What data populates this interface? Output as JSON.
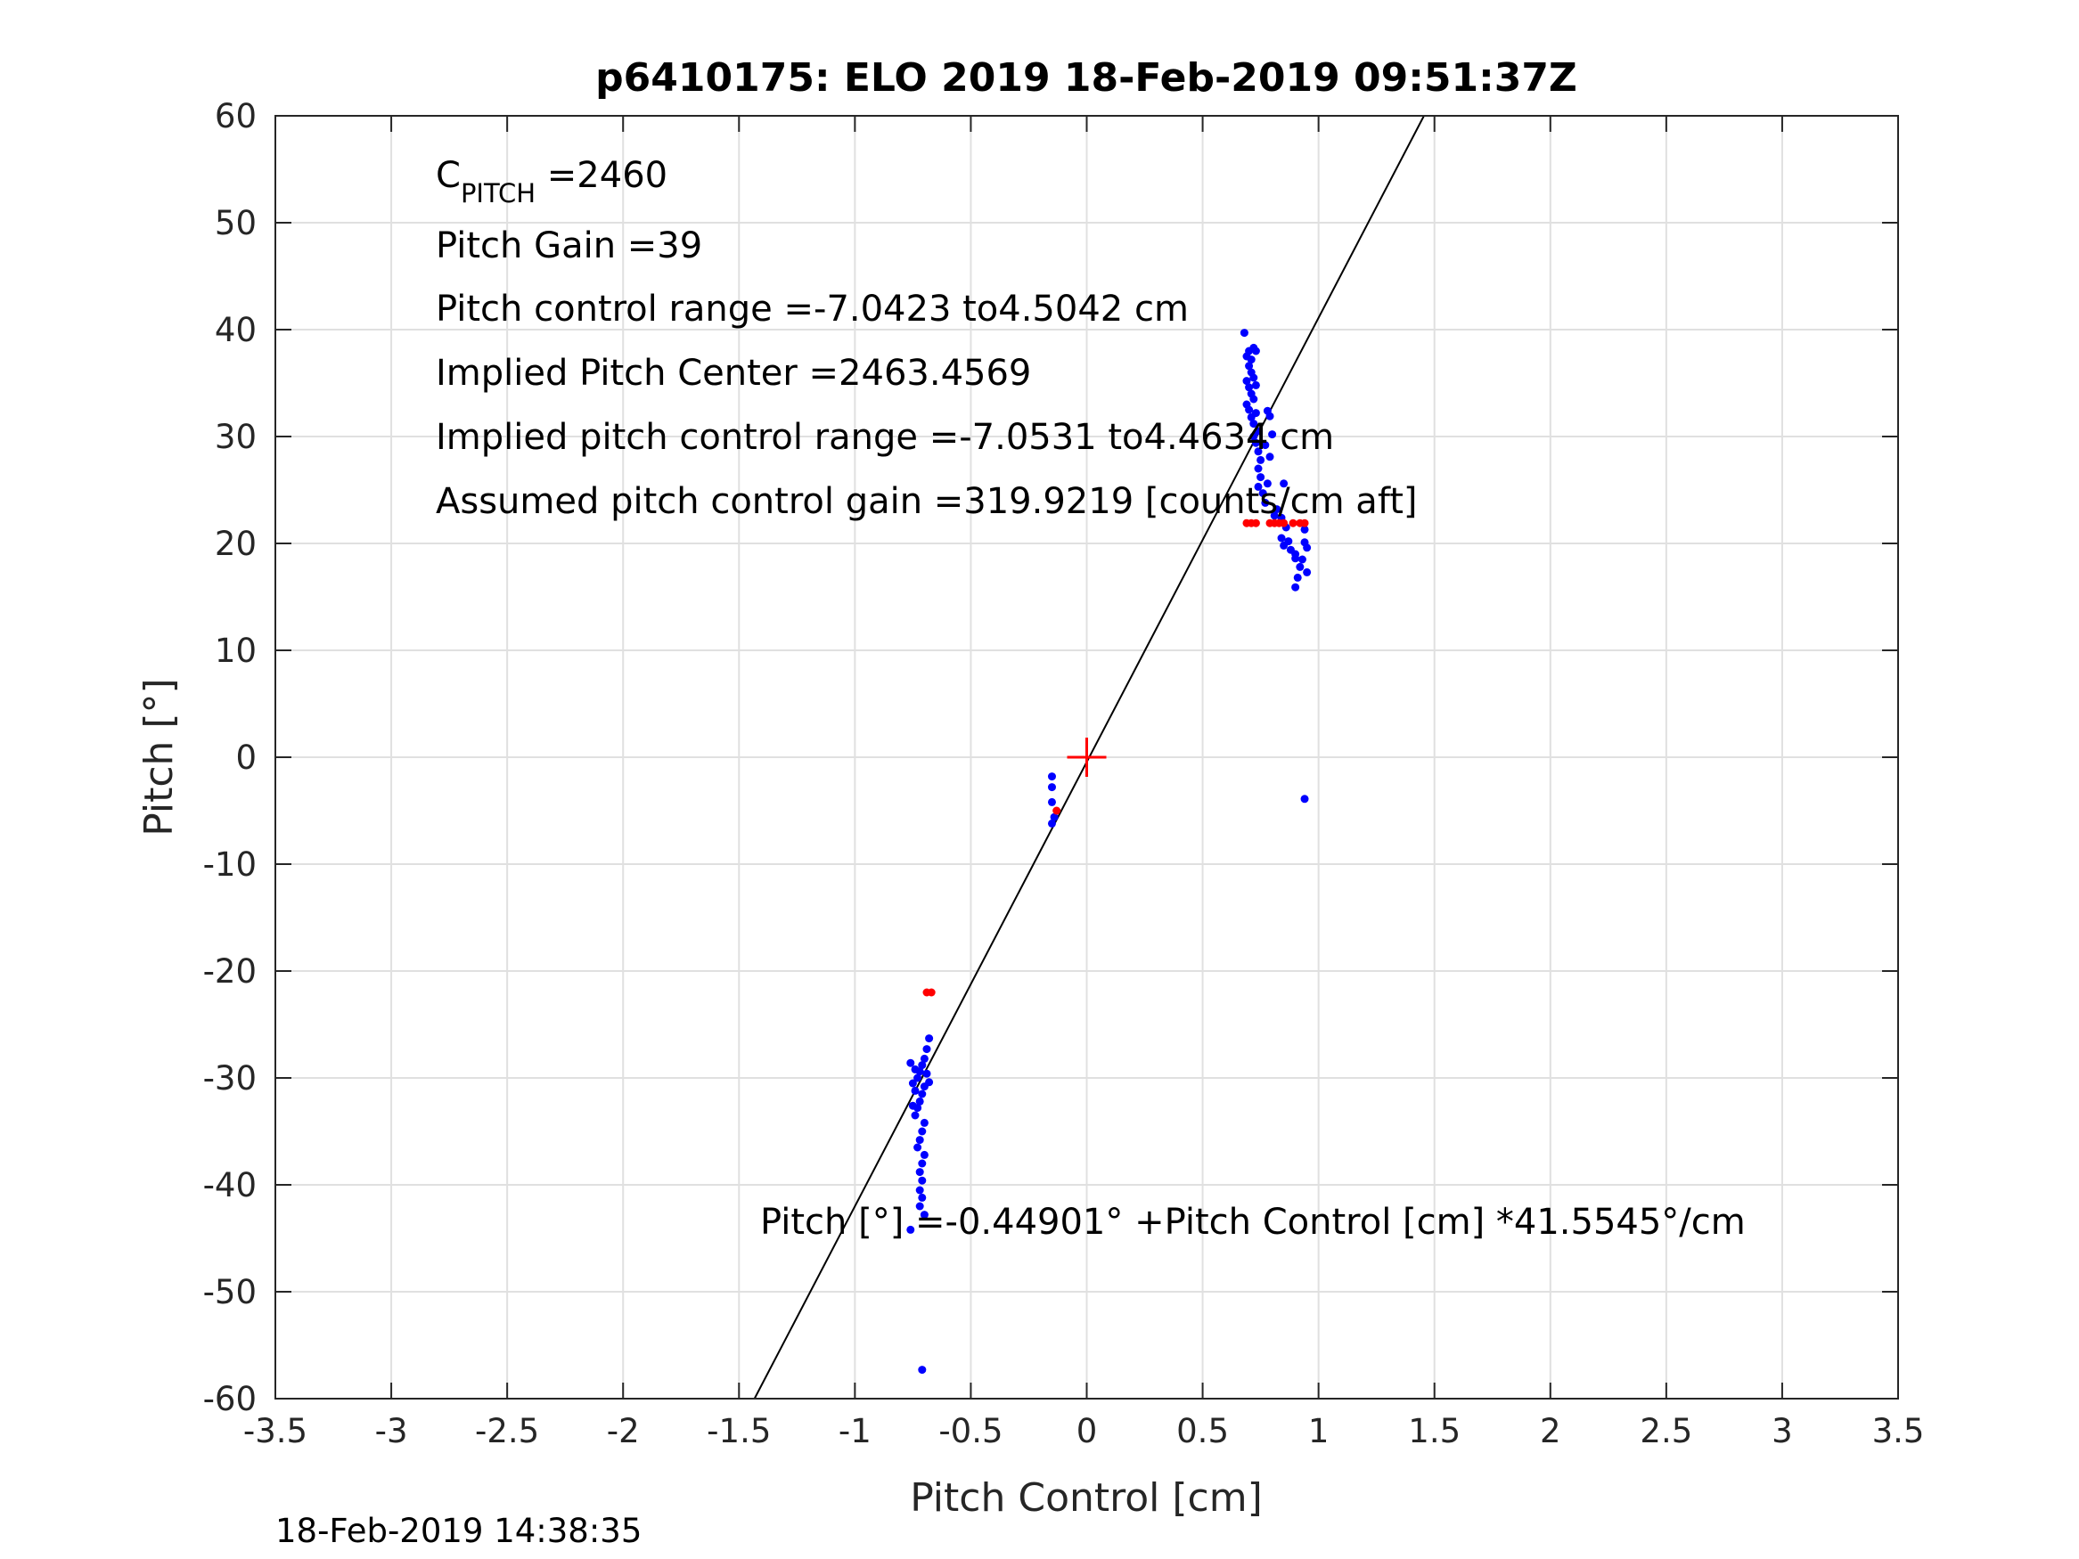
{
  "chart_data": {
    "type": "scatter",
    "title": "p6410175: ELO 2019 18-Feb-2019 09:51:37Z",
    "xlabel": "Pitch Control [cm]",
    "ylabel": "Pitch [°]",
    "xlim": [
      -3.5,
      3.5
    ],
    "ylim": [
      -60,
      60
    ],
    "xticks": [
      "-3.5",
      "-3",
      "-2.5",
      "-2",
      "-1.5",
      "-1",
      "-0.5",
      "0",
      "0.5",
      "1",
      "1.5",
      "2",
      "2.5",
      "3",
      "3.5"
    ],
    "xtick_values": [
      -3.5,
      -3,
      -2.5,
      -2,
      -1.5,
      -1,
      -0.5,
      0,
      0.5,
      1,
      1.5,
      2,
      2.5,
      3,
      3.5
    ],
    "yticks": [
      "60",
      "50",
      "40",
      "30",
      "20",
      "10",
      "0",
      "-10",
      "-20",
      "-30",
      "-40",
      "-50",
      "-60"
    ],
    "ytick_values": [
      60,
      50,
      40,
      30,
      20,
      10,
      0,
      -10,
      -20,
      -30,
      -40,
      -50,
      -60
    ],
    "grid": true,
    "colors": {
      "blue": "#0000ff",
      "red": "#ff0000",
      "line": "#000000",
      "grid": "#e0e0e0"
    },
    "fit_line": {
      "intercept": -0.44901,
      "slope": 41.5545
    },
    "center_marker": {
      "x": 0,
      "y": 0,
      "color": "#ff0000",
      "shape": "plus"
    },
    "series": [
      {
        "color": "#0000ff",
        "points": [
          [
            0.68,
            39.7
          ],
          [
            0.69,
            37.5
          ],
          [
            0.7,
            38.0
          ],
          [
            0.71,
            37.2
          ],
          [
            0.72,
            38.3
          ],
          [
            0.73,
            38.0
          ],
          [
            0.7,
            36.6
          ],
          [
            0.71,
            36.0
          ],
          [
            0.72,
            35.5
          ],
          [
            0.69,
            35.2
          ],
          [
            0.7,
            34.6
          ],
          [
            0.71,
            34.0
          ],
          [
            0.72,
            33.5
          ],
          [
            0.73,
            34.8
          ],
          [
            0.69,
            33.0
          ],
          [
            0.7,
            32.5
          ],
          [
            0.71,
            31.8
          ],
          [
            0.72,
            31.2
          ],
          [
            0.73,
            32.2
          ],
          [
            0.74,
            30.5
          ],
          [
            0.72,
            30.0
          ],
          [
            0.73,
            29.4
          ],
          [
            0.74,
            28.6
          ],
          [
            0.75,
            27.8
          ],
          [
            0.74,
            27.0
          ],
          [
            0.75,
            26.2
          ],
          [
            0.74,
            25.3
          ],
          [
            0.76,
            24.7
          ],
          [
            0.77,
            23.8
          ],
          [
            0.78,
            25.6
          ],
          [
            0.79,
            31.9
          ],
          [
            0.8,
            30.2
          ],
          [
            0.78,
            32.4
          ],
          [
            0.77,
            29.2
          ],
          [
            0.79,
            28.1
          ],
          [
            0.81,
            22.6
          ],
          [
            0.82,
            23.2
          ],
          [
            0.84,
            22.4
          ],
          [
            0.85,
            25.6
          ],
          [
            0.86,
            21.5
          ],
          [
            0.84,
            20.5
          ],
          [
            0.85,
            19.8
          ],
          [
            0.88,
            19.4
          ],
          [
            0.9,
            18.6
          ],
          [
            0.92,
            17.8
          ],
          [
            0.91,
            16.8
          ],
          [
            0.9,
            15.9
          ],
          [
            0.93,
            18.5
          ],
          [
            0.94,
            20.1
          ],
          [
            0.94,
            21.3
          ],
          [
            0.95,
            19.6
          ],
          [
            0.95,
            17.3
          ],
          [
            0.9,
            19.0
          ],
          [
            0.87,
            20.2
          ],
          [
            0.94,
            -3.9
          ],
          [
            -0.15,
            -1.8
          ],
          [
            -0.15,
            -2.8
          ],
          [
            -0.15,
            -4.2
          ],
          [
            -0.14,
            -5.6
          ],
          [
            -0.15,
            -6.2
          ],
          [
            -0.68,
            -26.3
          ],
          [
            -0.69,
            -27.3
          ],
          [
            -0.7,
            -28.2
          ],
          [
            -0.71,
            -28.8
          ],
          [
            -0.72,
            -29.4
          ],
          [
            -0.73,
            -30.0
          ],
          [
            -0.74,
            -29.2
          ],
          [
            -0.75,
            -30.5
          ],
          [
            -0.76,
            -28.6
          ],
          [
            -0.7,
            -30.8
          ],
          [
            -0.71,
            -31.5
          ],
          [
            -0.72,
            -32.2
          ],
          [
            -0.73,
            -32.8
          ],
          [
            -0.74,
            -33.5
          ],
          [
            -0.7,
            -34.2
          ],
          [
            -0.71,
            -35.0
          ],
          [
            -0.72,
            -35.8
          ],
          [
            -0.73,
            -36.5
          ],
          [
            -0.7,
            -37.2
          ],
          [
            -0.71,
            -38.0
          ],
          [
            -0.72,
            -38.8
          ],
          [
            -0.71,
            -39.6
          ],
          [
            -0.72,
            -40.5
          ],
          [
            -0.71,
            -41.2
          ],
          [
            -0.72,
            -42.0
          ],
          [
            -0.7,
            -42.8
          ],
          [
            -0.74,
            -31.2
          ],
          [
            -0.75,
            -32.6
          ],
          [
            -0.69,
            -29.6
          ],
          [
            -0.68,
            -30.4
          ],
          [
            -0.76,
            -44.2
          ],
          [
            -0.71,
            -57.3
          ]
        ]
      },
      {
        "color": "#ff0000",
        "points": [
          [
            0.69,
            21.9
          ],
          [
            0.71,
            21.9
          ],
          [
            0.73,
            21.9
          ],
          [
            0.79,
            21.9
          ],
          [
            0.81,
            21.9
          ],
          [
            0.83,
            21.9
          ],
          [
            0.85,
            21.9
          ],
          [
            0.89,
            21.9
          ],
          [
            0.92,
            21.9
          ],
          [
            0.94,
            21.9
          ],
          [
            -0.69,
            -22.0
          ],
          [
            -0.67,
            -22.0
          ],
          [
            -0.13,
            -5.0
          ]
        ]
      }
    ]
  },
  "annotations": {
    "c_pitch_main": "C",
    "c_pitch_sub": "PITCH",
    "c_pitch_value": " =2460",
    "pitch_gain": "Pitch Gain =39",
    "pitch_control_range": "Pitch control range =-7.0423 to4.5042 cm",
    "implied_pitch_center": "Implied Pitch Center =2463.4569",
    "implied_pitch_control_range": "Implied pitch control range =-7.0531 to4.4634 cm",
    "assumed_gain": "Assumed pitch control gain =319.9219 [counts/cm aft]",
    "fit_equation": "Pitch [°] =-0.44901° +Pitch Control [cm] *41.5545°/cm"
  },
  "timestamp": "18-Feb-2019 14:38:35"
}
